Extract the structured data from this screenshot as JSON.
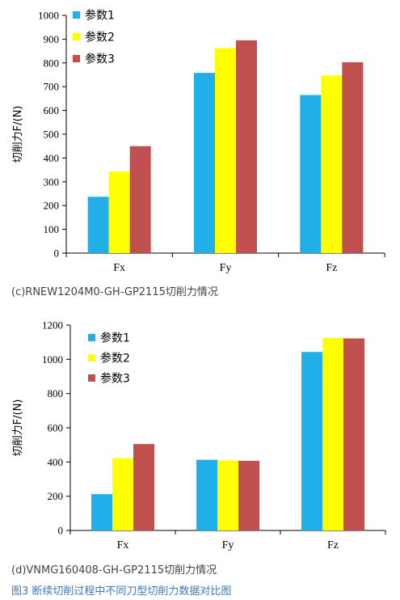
{
  "chart_data": [
    {
      "type": "bar",
      "categories": [
        "Fx",
        "Fy",
        "Fz"
      ],
      "series": [
        {
          "name": "参数1",
          "color": "#1fb0ea",
          "values": [
            237,
            758,
            665
          ]
        },
        {
          "name": "参数2",
          "color": "#ffff00",
          "values": [
            343,
            862,
            747
          ]
        },
        {
          "name": "参数3",
          "color": "#c0504d",
          "values": [
            450,
            895,
            803
          ]
        }
      ],
      "ylabel": "切削力F/(N)",
      "ylim": [
        0,
        1000
      ],
      "yticks": [
        0,
        100,
        200,
        300,
        400,
        500,
        600,
        700,
        800,
        900,
        1000
      ],
      "legend": "top-left",
      "grid": false
    },
    {
      "type": "bar",
      "categories": [
        "Fx",
        "Fy",
        "Fz"
      ],
      "series": [
        {
          "name": "参数1",
          "color": "#1fb0ea",
          "values": [
            212,
            413,
            1043
          ]
        },
        {
          "name": "参数2",
          "color": "#ffff00",
          "values": [
            422,
            408,
            1125
          ]
        },
        {
          "name": "参数3",
          "color": "#c0504d",
          "values": [
            505,
            407,
            1122
          ]
        }
      ],
      "ylabel": "切削力F/(N)",
      "ylim": [
        0,
        1200
      ],
      "yticks": [
        0,
        200,
        400,
        600,
        800,
        1000,
        1200
      ],
      "legend": "top-left",
      "grid": false
    }
  ],
  "captions": {
    "chart1": "(c)RNEW1204M0-GH-GP2115切削力情况",
    "chart2": "(d)VNMG160408-GH-GP2115切削力情况",
    "figure": "图3  断续切削过程中不同刀型切削力数据对比图"
  }
}
